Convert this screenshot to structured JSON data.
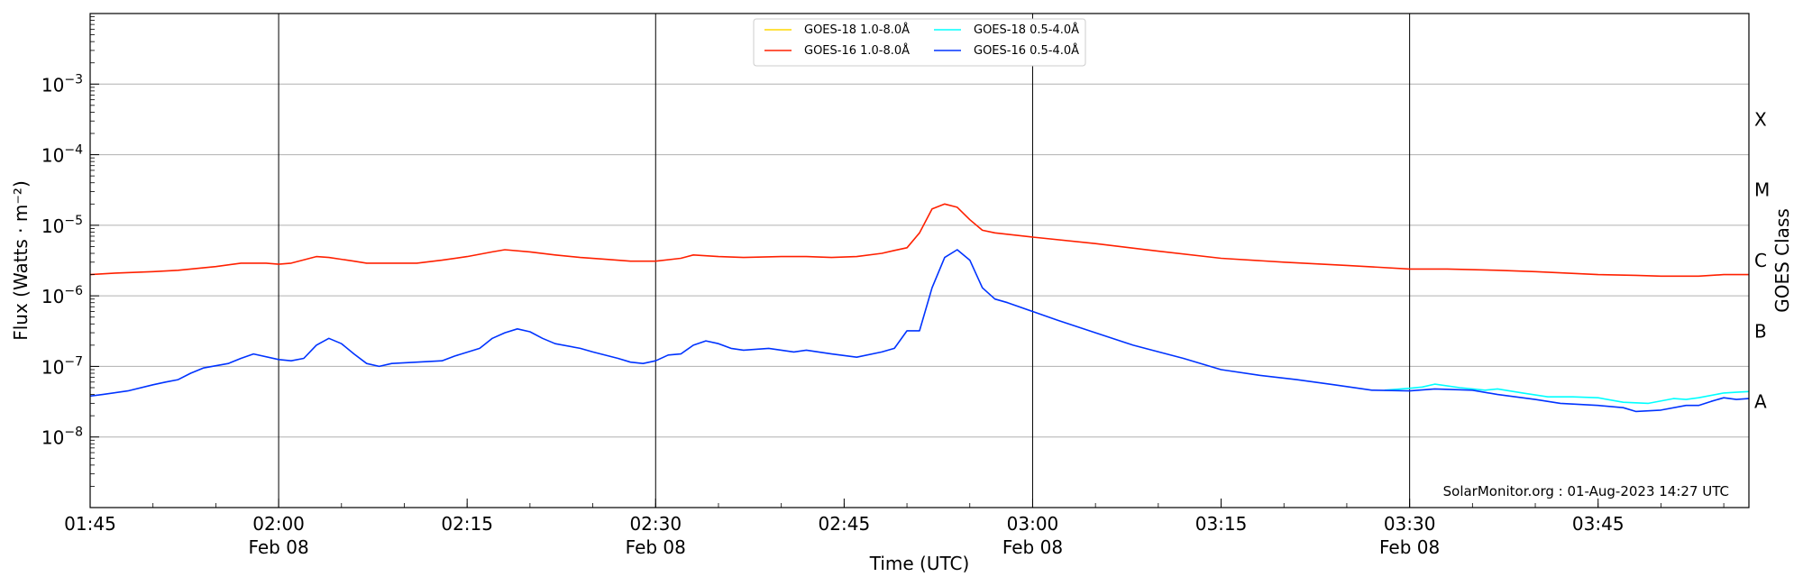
{
  "chart_data": {
    "type": "line",
    "xlabel": "Time (UTC)",
    "ylabel": "Flux (Watts · m⁻²)",
    "y2label": "GOES Class",
    "yscale": "log",
    "ylim": [
      1e-09,
      0.01
    ],
    "xlim": [
      "01:45",
      "03:57"
    ],
    "grid": "horizontal at decades",
    "legend_placement": "top-center",
    "x_ticks": [
      {
        "time": "01:45",
        "date": ""
      },
      {
        "time": "02:00",
        "date": "Feb 08"
      },
      {
        "time": "02:15",
        "date": ""
      },
      {
        "time": "02:30",
        "date": "Feb 08"
      },
      {
        "time": "02:45",
        "date": ""
      },
      {
        "time": "03:00",
        "date": "Feb 08"
      },
      {
        "time": "03:15",
        "date": ""
      },
      {
        "time": "03:30",
        "date": "Feb 08"
      },
      {
        "time": "03:45",
        "date": ""
      }
    ],
    "vertical_lines": [
      "02:00",
      "02:30",
      "03:00",
      "03:30"
    ],
    "y_ticks": [
      {
        "value": 1e-08,
        "base": "10",
        "exp": "−8"
      },
      {
        "value": 1e-07,
        "base": "10",
        "exp": "−7"
      },
      {
        "value": 1e-06,
        "base": "10",
        "exp": "−6"
      },
      {
        "value": 1e-05,
        "base": "10",
        "exp": "−5"
      },
      {
        "value": 0.0001,
        "base": "10",
        "exp": "−4"
      },
      {
        "value": 0.001,
        "base": "10",
        "exp": "−3"
      }
    ],
    "goes_classes": [
      {
        "label": "A",
        "value": 3.16e-08
      },
      {
        "label": "B",
        "value": 3.16e-07
      },
      {
        "label": "C",
        "value": 3.16e-06
      },
      {
        "label": "M",
        "value": 3.16e-05
      },
      {
        "label": "X",
        "value": 0.000316
      }
    ],
    "credit": "SolarMonitor.org : 01-Aug-2023 14:27 UTC",
    "series": [
      {
        "name": "GOES-18 1.0-8.0Å",
        "color": "#ffd700",
        "points": []
      },
      {
        "name": "GOES-18 0.5-4.0Å",
        "color": "#00ffff",
        "points": [
          [
            "03:28",
            4.6e-08
          ],
          [
            "03:30",
            4.9e-08
          ],
          [
            "03:31",
            5.1e-08
          ],
          [
            "03:32",
            5.6e-08
          ],
          [
            "03:34",
            5e-08
          ],
          [
            "03:36",
            4.6e-08
          ],
          [
            "03:37",
            4.8e-08
          ],
          [
            "03:39",
            4.2e-08
          ],
          [
            "03:41",
            3.7e-08
          ],
          [
            "03:43",
            3.7e-08
          ],
          [
            "03:45",
            3.6e-08
          ],
          [
            "03:47",
            3.1e-08
          ],
          [
            "03:49",
            3e-08
          ],
          [
            "03:51",
            3.5e-08
          ],
          [
            "03:52",
            3.4e-08
          ],
          [
            "03:53",
            3.6e-08
          ],
          [
            "03:55",
            4.2e-08
          ],
          [
            "03:56",
            4.3e-08
          ],
          [
            "03:57",
            4.4e-08
          ]
        ]
      },
      {
        "name": "GOES-16 1.0-8.0Å",
        "color": "#ff2000",
        "points": [
          [
            "01:45",
            2e-06
          ],
          [
            "01:47",
            2.1e-06
          ],
          [
            "01:50",
            2.2e-06
          ],
          [
            "01:52",
            2.3e-06
          ],
          [
            "01:53",
            2.4e-06
          ],
          [
            "01:55",
            2.6e-06
          ],
          [
            "01:57",
            2.9e-06
          ],
          [
            "01:59",
            2.9e-06
          ],
          [
            "02:00",
            2.8e-06
          ],
          [
            "02:01",
            2.9e-06
          ],
          [
            "02:03",
            3.6e-06
          ],
          [
            "02:04",
            3.5e-06
          ],
          [
            "02:06",
            3.1e-06
          ],
          [
            "02:07",
            2.9e-06
          ],
          [
            "02:09",
            2.9e-06
          ],
          [
            "02:11",
            2.9e-06
          ],
          [
            "02:13",
            3.2e-06
          ],
          [
            "02:15",
            3.6e-06
          ],
          [
            "02:17",
            4.2e-06
          ],
          [
            "02:18",
            4.5e-06
          ],
          [
            "02:20",
            4.2e-06
          ],
          [
            "02:22",
            3.8e-06
          ],
          [
            "02:24",
            3.5e-06
          ],
          [
            "02:26",
            3.3e-06
          ],
          [
            "02:28",
            3.1e-06
          ],
          [
            "02:30",
            3.1e-06
          ],
          [
            "02:32",
            3.4e-06
          ],
          [
            "02:33",
            3.8e-06
          ],
          [
            "02:35",
            3.6e-06
          ],
          [
            "02:37",
            3.5e-06
          ],
          [
            "02:40",
            3.6e-06
          ],
          [
            "02:42",
            3.6e-06
          ],
          [
            "02:44",
            3.5e-06
          ],
          [
            "02:46",
            3.6e-06
          ],
          [
            "02:48",
            4e-06
          ],
          [
            "02:49",
            4.4e-06
          ],
          [
            "02:50",
            4.8e-06
          ],
          [
            "02:51",
            7.8e-06
          ],
          [
            "02:52",
            1.7e-05
          ],
          [
            "02:53",
            2e-05
          ],
          [
            "02:54",
            1.8e-05
          ],
          [
            "02:55",
            1.2e-05
          ],
          [
            "02:56",
            8.5e-06
          ],
          [
            "02:57",
            7.8e-06
          ],
          [
            "03:00",
            6.8e-06
          ],
          [
            "03:05",
            5.5e-06
          ],
          [
            "03:10",
            4.3e-06
          ],
          [
            "03:15",
            3.4e-06
          ],
          [
            "03:20",
            3e-06
          ],
          [
            "03:25",
            2.7e-06
          ],
          [
            "03:30",
            2.4e-06
          ],
          [
            "03:33",
            2.4e-06
          ],
          [
            "03:37",
            2.3e-06
          ],
          [
            "03:40",
            2.2e-06
          ],
          [
            "03:45",
            2e-06
          ],
          [
            "03:48",
            1.95e-06
          ],
          [
            "03:50",
            1.9e-06
          ],
          [
            "03:53",
            1.9e-06
          ],
          [
            "03:55",
            2e-06
          ],
          [
            "03:57",
            2e-06
          ]
        ]
      },
      {
        "name": "GOES-16 0.5-4.0Å",
        "color": "#0033ff",
        "points": [
          [
            "01:45",
            3.8e-08
          ],
          [
            "01:46",
            4e-08
          ],
          [
            "01:48",
            4.5e-08
          ],
          [
            "01:50",
            5.5e-08
          ],
          [
            "01:51",
            6e-08
          ],
          [
            "01:52",
            6.5e-08
          ],
          [
            "01:53",
            8e-08
          ],
          [
            "01:54",
            9.5e-08
          ],
          [
            "01:56",
            1.1e-07
          ],
          [
            "01:57",
            1.3e-07
          ],
          [
            "01:58",
            1.5e-07
          ],
          [
            "02:00",
            1.25e-07
          ],
          [
            "02:01",
            1.2e-07
          ],
          [
            "02:02",
            1.3e-07
          ],
          [
            "02:03",
            2e-07
          ],
          [
            "02:04",
            2.5e-07
          ],
          [
            "02:05",
            2.1e-07
          ],
          [
            "02:06",
            1.5e-07
          ],
          [
            "02:07",
            1.1e-07
          ],
          [
            "02:08",
            1e-07
          ],
          [
            "02:09",
            1.1e-07
          ],
          [
            "02:11",
            1.15e-07
          ],
          [
            "02:13",
            1.2e-07
          ],
          [
            "02:14",
            1.4e-07
          ],
          [
            "02:16",
            1.8e-07
          ],
          [
            "02:17",
            2.5e-07
          ],
          [
            "02:18",
            3e-07
          ],
          [
            "02:19",
            3.4e-07
          ],
          [
            "02:20",
            3.1e-07
          ],
          [
            "02:21",
            2.5e-07
          ],
          [
            "02:22",
            2.1e-07
          ],
          [
            "02:24",
            1.8e-07
          ],
          [
            "02:25",
            1.6e-07
          ],
          [
            "02:27",
            1.3e-07
          ],
          [
            "02:28",
            1.15e-07
          ],
          [
            "02:29",
            1.1e-07
          ],
          [
            "02:30",
            1.2e-07
          ],
          [
            "02:31",
            1.45e-07
          ],
          [
            "02:32",
            1.5e-07
          ],
          [
            "02:33",
            2e-07
          ],
          [
            "02:34",
            2.3e-07
          ],
          [
            "02:35",
            2.1e-07
          ],
          [
            "02:36",
            1.8e-07
          ],
          [
            "02:37",
            1.7e-07
          ],
          [
            "02:39",
            1.8e-07
          ],
          [
            "02:41",
            1.6e-07
          ],
          [
            "02:42",
            1.7e-07
          ],
          [
            "02:44",
            1.5e-07
          ],
          [
            "02:46",
            1.35e-07
          ],
          [
            "02:48",
            1.6e-07
          ],
          [
            "02:49",
            1.8e-07
          ],
          [
            "02:50",
            3.2e-07
          ],
          [
            "02:51",
            3.2e-07
          ],
          [
            "02:52",
            1.3e-06
          ],
          [
            "02:53",
            3.5e-06
          ],
          [
            "02:54",
            4.5e-06
          ],
          [
            "02:55",
            3.2e-06
          ],
          [
            "02:56",
            1.3e-06
          ],
          [
            "02:57",
            9e-07
          ],
          [
            "02:58",
            8e-07
          ],
          [
            "03:00",
            6e-07
          ],
          [
            "03:02",
            4.5e-07
          ],
          [
            "03:05",
            3e-07
          ],
          [
            "03:08",
            2e-07
          ],
          [
            "03:12",
            1.3e-07
          ],
          [
            "03:15",
            9e-08
          ],
          [
            "03:18",
            7.5e-08
          ],
          [
            "03:21",
            6.5e-08
          ],
          [
            "03:24",
            5.5e-08
          ],
          [
            "03:27",
            4.6e-08
          ],
          [
            "03:30",
            4.5e-08
          ],
          [
            "03:32",
            4.8e-08
          ],
          [
            "03:35",
            4.6e-08
          ],
          [
            "03:37",
            4e-08
          ],
          [
            "03:40",
            3.4e-08
          ],
          [
            "03:42",
            3e-08
          ],
          [
            "03:45",
            2.8e-08
          ],
          [
            "03:47",
            2.6e-08
          ],
          [
            "03:48",
            2.3e-08
          ],
          [
            "03:50",
            2.4e-08
          ],
          [
            "03:52",
            2.8e-08
          ],
          [
            "03:53",
            2.8e-08
          ],
          [
            "03:54",
            3.2e-08
          ],
          [
            "03:55",
            3.6e-08
          ],
          [
            "03:56",
            3.4e-08
          ],
          [
            "03:57",
            3.5e-08
          ]
        ]
      }
    ],
    "legend_order": [
      0,
      1,
      2,
      3
    ]
  }
}
